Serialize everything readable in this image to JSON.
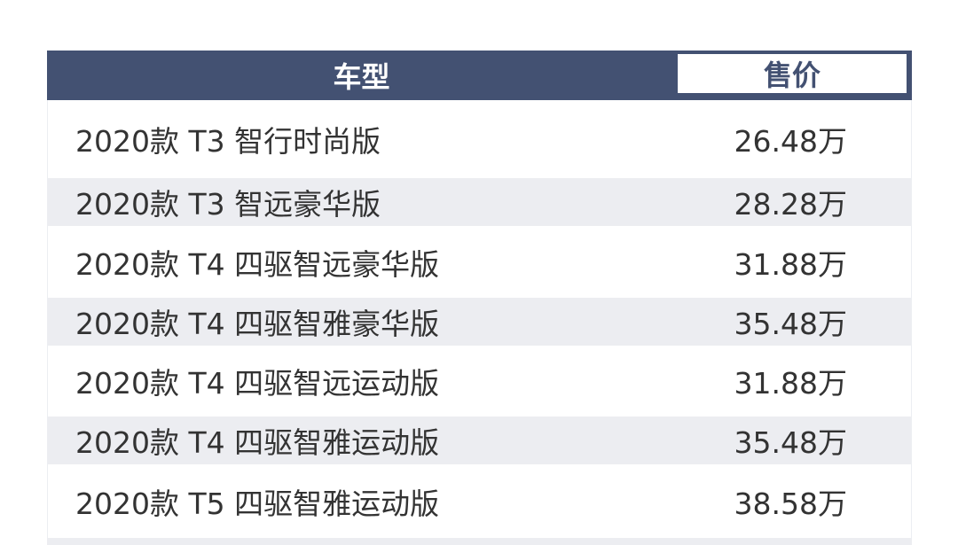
{
  "header": {
    "model": "车型",
    "price": "售价"
  },
  "colors": {
    "header_bg": "#435172",
    "stripe": "#ecedf1",
    "text": "#333333"
  },
  "rows": [
    {
      "model": "2020款 T3 智行时尚版",
      "price": "26.48万"
    },
    {
      "model": "2020款 T3 智远豪华版",
      "price": "28.28万"
    },
    {
      "model": "2020款 T4 四驱智远豪华版",
      "price": "31.88万"
    },
    {
      "model": "2020款 T4 四驱智雅豪华版",
      "price": "35.48万"
    },
    {
      "model": "2020款 T4 四驱智远运动版",
      "price": "31.88万"
    },
    {
      "model": "2020款 T4 四驱智雅运动版",
      "price": "35.48万"
    },
    {
      "model": "2020款 T5 四驱智雅运动版",
      "price": "38.58万"
    }
  ]
}
